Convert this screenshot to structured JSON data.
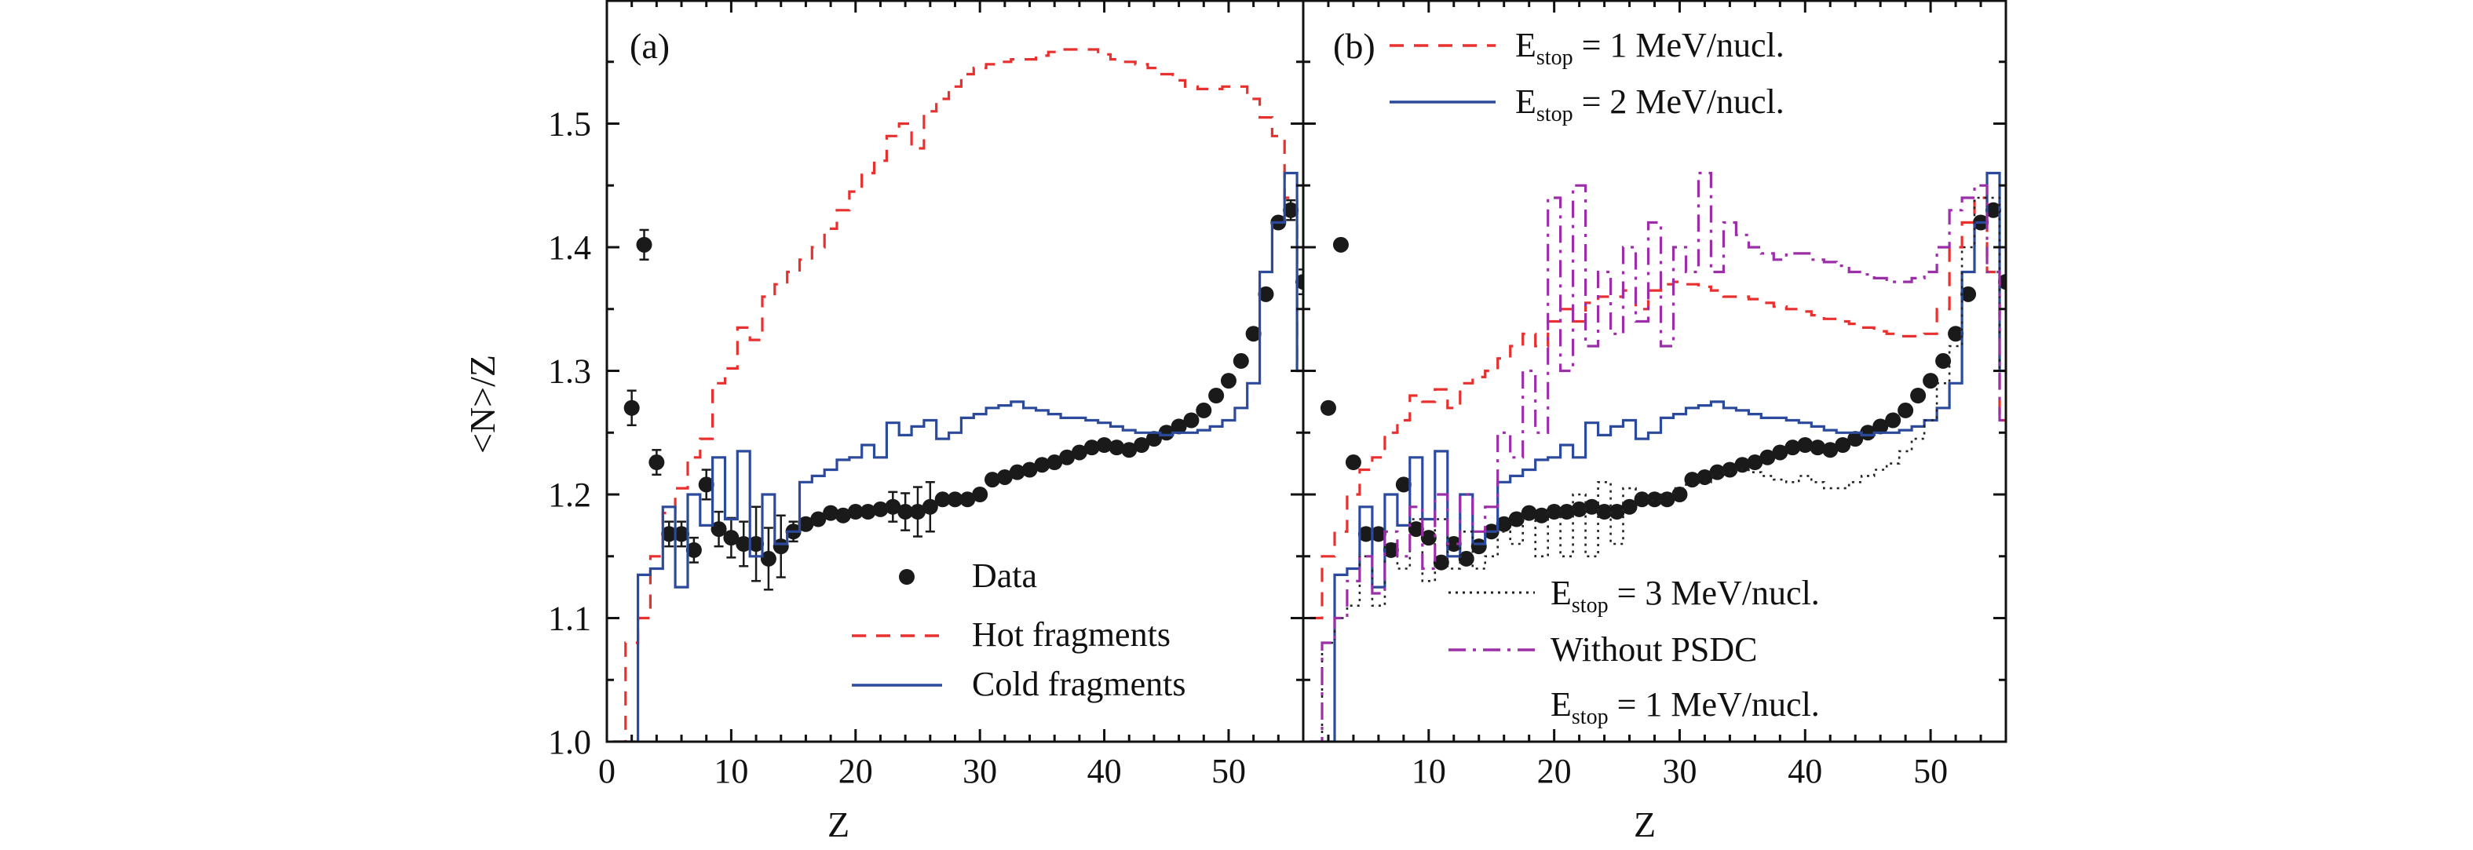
{
  "figure": {
    "ylabel": "<N>/Z",
    "xlabel": "Z"
  },
  "chart_data": [
    {
      "panel_label": "(a)",
      "type": "scatter",
      "xlabel": "Z",
      "ylabel": "<N>/Z",
      "xlim": [
        0,
        56
      ],
      "ylim": [
        1.0,
        1.6
      ],
      "xticks": [
        0,
        10,
        20,
        30,
        40,
        50
      ],
      "yticks": [
        1.0,
        1.1,
        1.2,
        1.3,
        1.4,
        1.5
      ],
      "legend_position": "bottom-right",
      "colors": {
        "data": "#1a1a1a",
        "hot": "#e8312f",
        "cold": "#2b4a9c"
      },
      "series": [
        {
          "name": "Data",
          "style": "points",
          "x": [
            2,
            3,
            4,
            5,
            6,
            7,
            8,
            9,
            10,
            11,
            12,
            13,
            14,
            15,
            16,
            17,
            18,
            19,
            20,
            21,
            22,
            23,
            24,
            25,
            26,
            27,
            28,
            29,
            30,
            31,
            32,
            33,
            34,
            35,
            36,
            37,
            38,
            39,
            40,
            41,
            42,
            43,
            44,
            45,
            46,
            47,
            48,
            49,
            50,
            51,
            52,
            53,
            54,
            55,
            56
          ],
          "y": [
            1.27,
            1.402,
            1.226,
            1.168,
            1.168,
            1.155,
            1.208,
            1.172,
            1.165,
            1.16,
            1.16,
            1.148,
            1.158,
            1.17,
            1.176,
            1.18,
            1.185,
            1.183,
            1.186,
            1.186,
            1.188,
            1.19,
            1.186,
            1.186,
            1.19,
            1.196,
            1.196,
            1.196,
            1.2,
            1.212,
            1.214,
            1.218,
            1.22,
            1.224,
            1.226,
            1.23,
            1.234,
            1.238,
            1.24,
            1.238,
            1.236,
            1.24,
            1.245,
            1.25,
            1.255,
            1.26,
            1.268,
            1.28,
            1.292,
            1.308,
            1.33,
            1.362,
            1.42,
            1.43,
            1.372
          ],
          "err": [
            0.014,
            0.012,
            0.01,
            0.01,
            0.01,
            0.01,
            0.012,
            0.014,
            0.016,
            0.018,
            0.03,
            0.025,
            0.025,
            0.008,
            0.006,
            0.006,
            0.006,
            0.006,
            0.006,
            0.006,
            0.006,
            0.012,
            0.015,
            0.02,
            0.02,
            0.006,
            0.006,
            0.006,
            0.006,
            0.005,
            0.005,
            0.005,
            0.005,
            0.005,
            0.005,
            0.005,
            0.005,
            0.005,
            0.005,
            0.005,
            0.005,
            0.005,
            0.005,
            0.005,
            0.005,
            0.005,
            0.005,
            0.005,
            0.005,
            0.005,
            0.005,
            0.006,
            0.006,
            0.008,
            0.01
          ]
        },
        {
          "name": "Hot fragments",
          "style": "step-dashed",
          "x": [
            1,
            2,
            3,
            4,
            5,
            6,
            7,
            8,
            9,
            10,
            11,
            12,
            13,
            14,
            15,
            16,
            17,
            18,
            19,
            20,
            21,
            22,
            23,
            24,
            25,
            26,
            27,
            28,
            29,
            30,
            31,
            32,
            33,
            34,
            35,
            36,
            37,
            38,
            39,
            40,
            41,
            42,
            43,
            44,
            45,
            46,
            47,
            48,
            49,
            50,
            51,
            52,
            53,
            54,
            55,
            56
          ],
          "y": [
            1.0,
            1.08,
            1.1,
            1.15,
            1.185,
            1.205,
            1.23,
            1.245,
            1.29,
            1.302,
            1.335,
            1.325,
            1.36,
            1.37,
            1.38,
            1.39,
            1.4,
            1.415,
            1.43,
            1.445,
            1.46,
            1.47,
            1.49,
            1.5,
            1.48,
            1.51,
            1.52,
            1.53,
            1.54,
            1.545,
            1.548,
            1.55,
            1.552,
            1.552,
            1.555,
            1.558,
            1.56,
            1.56,
            1.56,
            1.556,
            1.552,
            1.55,
            1.548,
            1.545,
            1.54,
            1.535,
            1.53,
            1.528,
            1.528,
            1.53,
            1.53,
            1.52,
            1.505,
            1.49,
            1.44,
            1.3
          ]
        },
        {
          "name": "Cold fragments",
          "style": "step-solid",
          "x": [
            1,
            2,
            3,
            4,
            5,
            6,
            7,
            8,
            9,
            10,
            11,
            12,
            13,
            14,
            15,
            16,
            17,
            18,
            19,
            20,
            21,
            22,
            23,
            24,
            25,
            26,
            27,
            28,
            29,
            30,
            31,
            32,
            33,
            34,
            35,
            36,
            37,
            38,
            39,
            40,
            41,
            42,
            43,
            44,
            45,
            46,
            47,
            48,
            49,
            50,
            51,
            52,
            53,
            54,
            55,
            56
          ],
          "y": [
            1.0,
            1.0,
            1.135,
            1.14,
            1.19,
            1.125,
            1.2,
            1.175,
            1.23,
            1.18,
            1.235,
            1.15,
            1.2,
            1.16,
            1.17,
            1.21,
            1.215,
            1.22,
            1.228,
            1.23,
            1.24,
            1.23,
            1.258,
            1.248,
            1.255,
            1.26,
            1.245,
            1.25,
            1.262,
            1.265,
            1.27,
            1.272,
            1.275,
            1.27,
            1.268,
            1.265,
            1.262,
            1.262,
            1.26,
            1.258,
            1.255,
            1.252,
            1.25,
            1.25,
            1.248,
            1.25,
            1.25,
            1.252,
            1.255,
            1.26,
            1.27,
            1.29,
            1.38,
            1.42,
            1.46,
            1.3
          ]
        }
      ]
    },
    {
      "panel_label": "(b)",
      "type": "scatter",
      "xlabel": "Z",
      "ylabel": "",
      "xlim": [
        0,
        56
      ],
      "ylim": [
        1.0,
        1.6
      ],
      "xticks": [
        10,
        20,
        30,
        40,
        50
      ],
      "yticks": [
        1.0,
        1.1,
        1.2,
        1.3,
        1.4,
        1.5
      ],
      "legend_position": "top and bottom",
      "colors": {
        "e1": "#e8312f",
        "e2": "#2b4a9c",
        "e3": "#222222",
        "psdc": "#9b2fa8",
        "data": "#1a1a1a"
      },
      "legend": {
        "e1_main": "E",
        "e1_sub": "stop",
        "e1_rest": " = 1 MeV/nucl.",
        "e2_main": "E",
        "e2_sub": "stop",
        "e2_rest": " = 2 MeV/nucl.",
        "e3_main": "E",
        "e3_sub": "stop",
        "e3_rest": " = 3 MeV/nucl.",
        "psdc_line1": "Without PSDC",
        "psdc_main": "E",
        "psdc_sub": "stop",
        "psdc_rest": " = 1 MeV/nucl."
      },
      "series": [
        {
          "name": "Data",
          "style": "points",
          "x": [
            2,
            3,
            4,
            5,
            6,
            7,
            8,
            9,
            10,
            11,
            12,
            13,
            14,
            15,
            16,
            17,
            18,
            19,
            20,
            21,
            22,
            23,
            24,
            25,
            26,
            27,
            28,
            29,
            30,
            31,
            32,
            33,
            34,
            35,
            36,
            37,
            38,
            39,
            40,
            41,
            42,
            43,
            44,
            45,
            46,
            47,
            48,
            49,
            50,
            51,
            52,
            53,
            54,
            55,
            56
          ],
          "y": [
            1.27,
            1.402,
            1.226,
            1.168,
            1.168,
            1.155,
            1.208,
            1.172,
            1.165,
            1.145,
            1.16,
            1.148,
            1.158,
            1.17,
            1.176,
            1.18,
            1.185,
            1.183,
            1.186,
            1.186,
            1.188,
            1.19,
            1.186,
            1.186,
            1.19,
            1.196,
            1.196,
            1.196,
            1.2,
            1.212,
            1.214,
            1.218,
            1.22,
            1.224,
            1.226,
            1.23,
            1.234,
            1.238,
            1.24,
            1.238,
            1.236,
            1.24,
            1.245,
            1.25,
            1.255,
            1.26,
            1.268,
            1.28,
            1.292,
            1.308,
            1.33,
            1.362,
            1.42,
            1.43,
            1.372
          ]
        },
        {
          "name": "E_stop = 1 MeV/nucl.",
          "style": "step-dashed",
          "x": [
            1,
            2,
            3,
            4,
            5,
            6,
            7,
            8,
            9,
            10,
            11,
            12,
            13,
            14,
            15,
            16,
            17,
            18,
            19,
            20,
            21,
            22,
            23,
            24,
            25,
            26,
            27,
            28,
            29,
            30,
            31,
            32,
            33,
            34,
            35,
            36,
            37,
            38,
            39,
            40,
            41,
            42,
            43,
            44,
            45,
            46,
            47,
            48,
            49,
            50,
            51,
            52,
            53,
            54,
            55,
            56
          ],
          "y": [
            1.1,
            1.15,
            1.17,
            1.2,
            1.22,
            1.23,
            1.25,
            1.26,
            1.28,
            1.275,
            1.285,
            1.27,
            1.29,
            1.295,
            1.3,
            1.31,
            1.32,
            1.33,
            1.32,
            1.34,
            1.35,
            1.34,
            1.355,
            1.36,
            1.36,
            1.365,
            1.35,
            1.365,
            1.37,
            1.372,
            1.37,
            1.368,
            1.365,
            1.36,
            1.36,
            1.358,
            1.355,
            1.352,
            1.35,
            1.348,
            1.345,
            1.342,
            1.34,
            1.338,
            1.335,
            1.332,
            1.33,
            1.328,
            1.328,
            1.33,
            1.35,
            1.4,
            1.42,
            1.44,
            1.38,
            1.26
          ]
        },
        {
          "name": "E_stop = 2 MeV/nucl.",
          "style": "step-solid",
          "x": [
            1,
            2,
            3,
            4,
            5,
            6,
            7,
            8,
            9,
            10,
            11,
            12,
            13,
            14,
            15,
            16,
            17,
            18,
            19,
            20,
            21,
            22,
            23,
            24,
            25,
            26,
            27,
            28,
            29,
            30,
            31,
            32,
            33,
            34,
            35,
            36,
            37,
            38,
            39,
            40,
            41,
            42,
            43,
            44,
            45,
            46,
            47,
            48,
            49,
            50,
            51,
            52,
            53,
            54,
            55,
            56
          ],
          "y": [
            1.0,
            1.0,
            1.135,
            1.14,
            1.19,
            1.125,
            1.2,
            1.175,
            1.23,
            1.18,
            1.235,
            1.15,
            1.2,
            1.16,
            1.17,
            1.21,
            1.215,
            1.22,
            1.228,
            1.23,
            1.24,
            1.23,
            1.258,
            1.248,
            1.255,
            1.26,
            1.245,
            1.25,
            1.262,
            1.265,
            1.27,
            1.272,
            1.275,
            1.27,
            1.268,
            1.265,
            1.262,
            1.262,
            1.26,
            1.258,
            1.255,
            1.252,
            1.25,
            1.25,
            1.248,
            1.25,
            1.25,
            1.252,
            1.255,
            1.26,
            1.27,
            1.29,
            1.38,
            1.42,
            1.46,
            1.3
          ]
        },
        {
          "name": "E_stop = 3 MeV/nucl.",
          "style": "step-dotted",
          "x": [
            1,
            2,
            3,
            4,
            5,
            6,
            7,
            8,
            9,
            10,
            11,
            12,
            13,
            14,
            15,
            16,
            17,
            18,
            19,
            20,
            21,
            22,
            23,
            24,
            25,
            26,
            27,
            28,
            29,
            30,
            31,
            32,
            33,
            34,
            35,
            36,
            37,
            38,
            39,
            40,
            41,
            42,
            43,
            44,
            45,
            46,
            47,
            48,
            49,
            50,
            51,
            52,
            53,
            54,
            55,
            56
          ],
          "y": [
            1.0,
            1.08,
            1.1,
            1.11,
            1.15,
            1.11,
            1.16,
            1.14,
            1.18,
            1.13,
            1.18,
            1.14,
            1.17,
            1.14,
            1.15,
            1.17,
            1.16,
            1.18,
            1.15,
            1.19,
            1.15,
            1.2,
            1.15,
            1.21,
            1.16,
            1.205,
            1.2,
            1.195,
            1.2,
            1.205,
            1.208,
            1.21,
            1.215,
            1.218,
            1.22,
            1.218,
            1.215,
            1.212,
            1.21,
            1.215,
            1.21,
            1.205,
            1.205,
            1.21,
            1.215,
            1.22,
            1.225,
            1.235,
            1.245,
            1.26,
            1.29,
            1.32,
            1.4,
            1.44,
            1.44,
            1.3
          ]
        },
        {
          "name": "Without PSDC E_stop = 1 MeV/nucl.",
          "style": "step-dashdot",
          "x": [
            1,
            2,
            3,
            4,
            5,
            6,
            7,
            8,
            9,
            10,
            11,
            12,
            13,
            14,
            15,
            16,
            17,
            18,
            19,
            20,
            21,
            22,
            23,
            24,
            25,
            26,
            27,
            28,
            29,
            30,
            31,
            32,
            33,
            34,
            35,
            36,
            37,
            38,
            39,
            40,
            41,
            42,
            43,
            44,
            45,
            46,
            47,
            48,
            49,
            50,
            51,
            52,
            53,
            54,
            55,
            56
          ],
          "y": [
            1.0,
            1.08,
            1.1,
            1.13,
            1.15,
            1.12,
            1.17,
            1.15,
            1.19,
            1.14,
            1.2,
            1.16,
            1.2,
            1.17,
            1.19,
            1.25,
            1.23,
            1.3,
            1.25,
            1.44,
            1.3,
            1.45,
            1.32,
            1.38,
            1.33,
            1.4,
            1.34,
            1.42,
            1.32,
            1.4,
            1.38,
            1.46,
            1.38,
            1.42,
            1.41,
            1.4,
            1.395,
            1.39,
            1.395,
            1.395,
            1.39,
            1.388,
            1.385,
            1.38,
            1.378,
            1.375,
            1.372,
            1.372,
            1.375,
            1.38,
            1.4,
            1.43,
            1.44,
            1.45,
            1.38,
            1.26
          ]
        }
      ]
    }
  ]
}
